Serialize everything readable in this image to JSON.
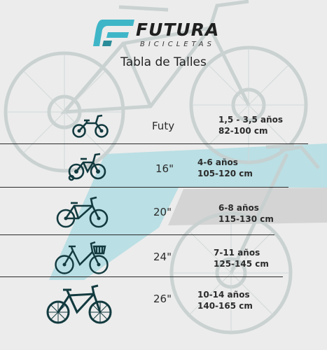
{
  "brand": {
    "name": "FUTURA",
    "tagline": "BICICLETAS"
  },
  "title": "Tabla de Talles",
  "colors": {
    "accent": "#7fd0dc",
    "accent_dark": "#2fb3c6",
    "icon_dark": "#123a3f",
    "text": "#2b2b2b",
    "background": "#ececec"
  },
  "rows": [
    {
      "icon": "balance-bike-icon",
      "size": "Futy",
      "age": "1,5 - 3,5 años",
      "height": "82-100 cm"
    },
    {
      "icon": "kids-bike-with-training-wheels-icon",
      "size": "16\"",
      "age": "4-6 años",
      "height": "105-120 cm"
    },
    {
      "icon": "bmx-bike-icon",
      "size": "20\"",
      "age": "6-8 años",
      "height": "115-130 cm"
    },
    {
      "icon": "city-bike-with-basket-icon",
      "size": "24\"",
      "age": "7-11 años",
      "height": "125-145 cm"
    },
    {
      "icon": "mountain-bike-icon",
      "size": "26\"",
      "age": "10-14 años",
      "height": "140-165 cm"
    }
  ]
}
